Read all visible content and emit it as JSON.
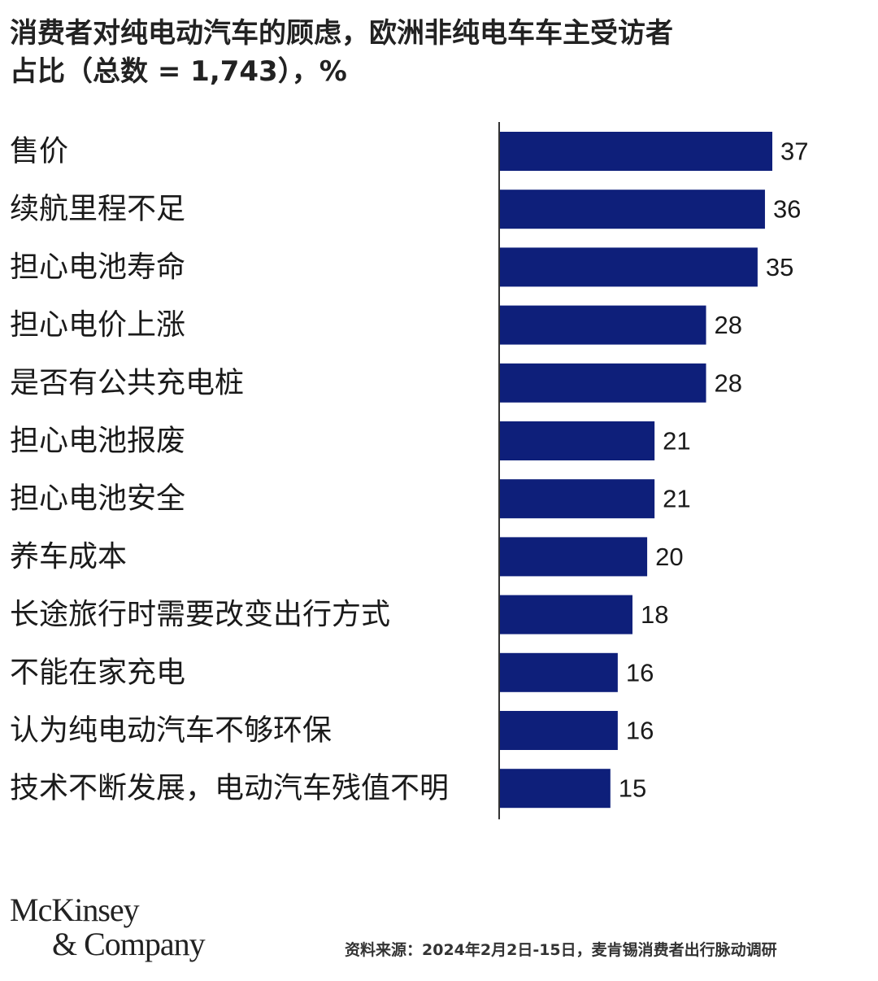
{
  "chart_data": {
    "type": "bar",
    "orientation": "horizontal",
    "title_lines": [
      "消费者对纯电动汽车的顾虑，欧洲非纯电车车主受访者",
      "占比（总数 = 1,743），%"
    ],
    "categories": [
      "售价",
      "续航里程不足",
      "担心电池寿命",
      "担心电价上涨",
      "是否有公共充电桩",
      "担心电池报废",
      "担心电池安全",
      "养车成本",
      "长途旅行时需要改变出行方式",
      "不能在家充电",
      "认为纯电动汽车不够环保",
      "技术不断发展，电动汽车残值不明"
    ],
    "values": [
      37,
      36,
      35,
      28,
      28,
      21,
      21,
      20,
      18,
      16,
      16,
      15
    ],
    "value_labels": [
      "37",
      "36",
      "35",
      "28",
      "28",
      "21",
      "21",
      "20",
      "18",
      "16",
      "16",
      "15"
    ],
    "xlim": [
      0,
      37
    ],
    "grid": false,
    "bar_color": "#0e1f7a"
  },
  "logo": {
    "line1": "McKinsey",
    "line2": "& Company"
  },
  "source": "资料来源：2024年2月2日-15日，麦肯锡消费者出行脉动调研"
}
